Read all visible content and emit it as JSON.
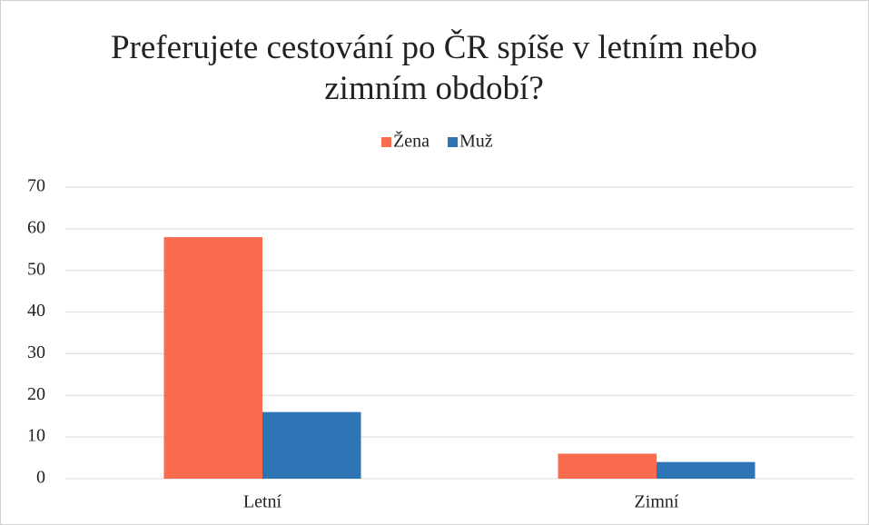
{
  "chart_data": {
    "type": "bar",
    "title": "Preferujete cestování po ČR spíše v letním nebo zimním období?",
    "categories": [
      "Letní",
      "Zimní"
    ],
    "series": [
      {
        "name": "Žena",
        "color": "#f96c4f",
        "values": [
          58,
          6
        ]
      },
      {
        "name": "Muž",
        "color": "#2e75b6",
        "values": [
          16,
          4
        ]
      }
    ],
    "ylim": [
      0,
      70
    ],
    "yticks": [
      0,
      10,
      20,
      30,
      40,
      50,
      60,
      70
    ],
    "grid": true,
    "legend": "top"
  }
}
